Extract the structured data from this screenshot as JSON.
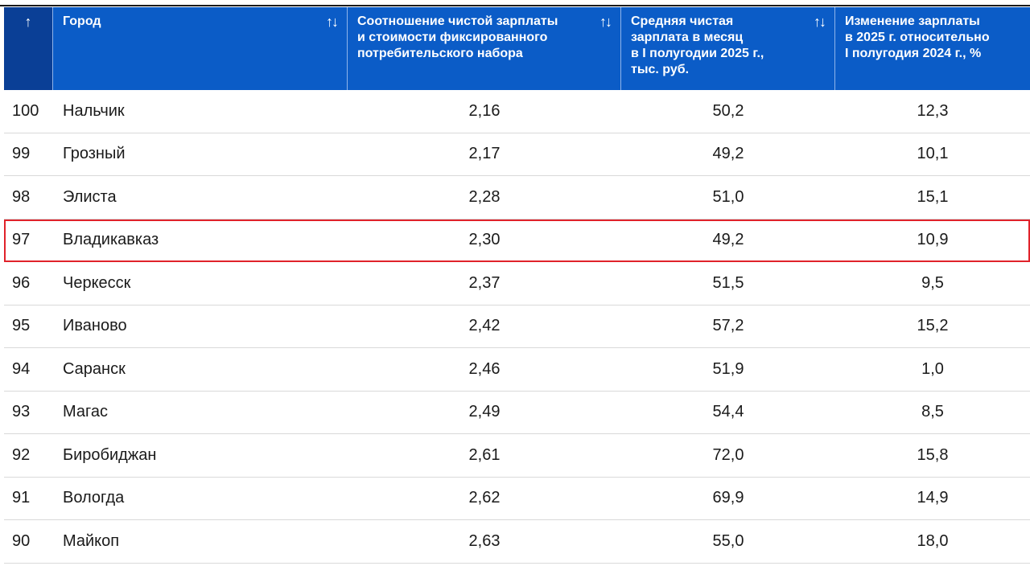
{
  "table": {
    "headers": {
      "rank": "↑",
      "city": "Город",
      "ratio": "Соотношение чистой зарплаты\nи стоимости фиксированного\nпотребительского набора",
      "salary": "Средняя чистая\nзарплата в месяц\nв I полугодии 2025 г.,\nтыс. руб.",
      "change": "Изменение зарплаты\nв 2025 г. относительно\nI полугодия 2024 г., %"
    },
    "sort_icon": "↑↓",
    "highlight_color": "#e0222a",
    "header_color": "#0b5cc7",
    "rows": [
      {
        "rank": "100",
        "city": "Нальчик",
        "ratio": "2,16",
        "salary": "50,2",
        "change": "12,3"
      },
      {
        "rank": "99",
        "city": "Грозный",
        "ratio": "2,17",
        "salary": "49,2",
        "change": "10,1"
      },
      {
        "rank": "98",
        "city": "Элиста",
        "ratio": "2,28",
        "salary": "51,0",
        "change": "15,1"
      },
      {
        "rank": "97",
        "city": "Владикавказ",
        "ratio": "2,30",
        "salary": "49,2",
        "change": "10,9",
        "highlighted": true
      },
      {
        "rank": "96",
        "city": "Черкесск",
        "ratio": "2,37",
        "salary": "51,5",
        "change": "9,5"
      },
      {
        "rank": "95",
        "city": "Иваново",
        "ratio": "2,42",
        "salary": "57,2",
        "change": "15,2"
      },
      {
        "rank": "94",
        "city": "Саранск",
        "ratio": "2,46",
        "salary": "51,9",
        "change": "1,0"
      },
      {
        "rank": "93",
        "city": "Магас",
        "ratio": "2,49",
        "salary": "54,4",
        "change": "8,5"
      },
      {
        "rank": "92",
        "city": "Биробиджан",
        "ratio": "2,61",
        "salary": "72,0",
        "change": "15,8"
      },
      {
        "rank": "91",
        "city": "Вологда",
        "ratio": "2,62",
        "salary": "69,9",
        "change": "14,9"
      },
      {
        "rank": "90",
        "city": "Майкоп",
        "ratio": "2,63",
        "salary": "55,0",
        "change": "18,0"
      }
    ]
  }
}
